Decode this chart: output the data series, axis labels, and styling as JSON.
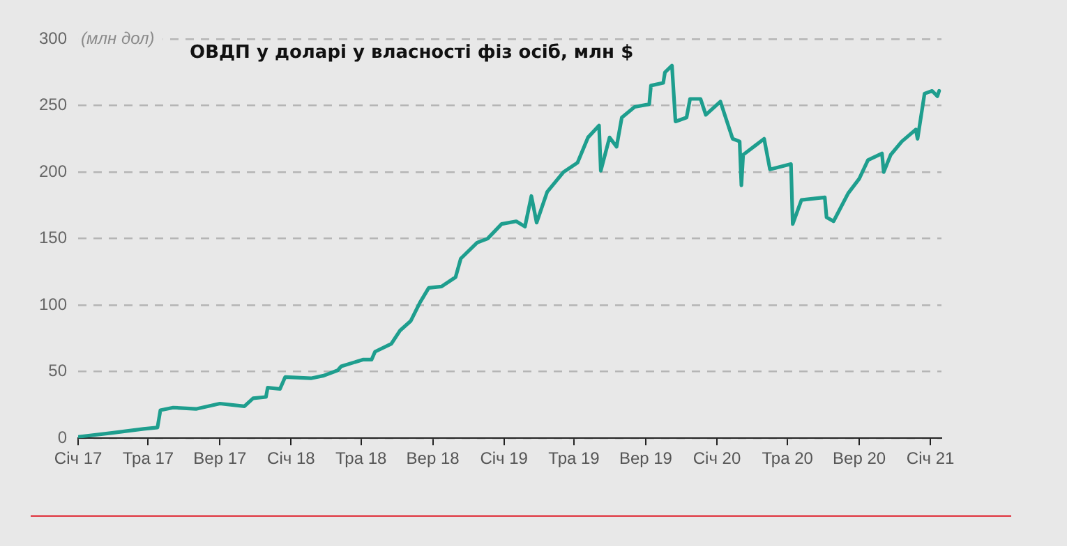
{
  "chart_data": {
    "type": "line",
    "title": "ОВДП у доларі у власності фіз осіб, млн $",
    "ylabel": "(млн дол)",
    "x": [
      "2017-01-01",
      "2017-02-28",
      "2017-04-23",
      "2017-05-17",
      "2017-05-22",
      "2017-06-13",
      "2017-07-22",
      "2017-09-01",
      "2017-10-13",
      "2017-10-28",
      "2017-11-19",
      "2017-11-22",
      "2017-12-13",
      "2017-12-22",
      "2018-02-04",
      "2018-02-26",
      "2018-03-22",
      "2018-03-28",
      "2018-05-04",
      "2018-05-19",
      "2018-05-25",
      "2018-06-22",
      "2018-07-07",
      "2018-07-25",
      "2018-08-10",
      "2018-08-25",
      "2018-09-16",
      "2018-10-10",
      "2018-10-19",
      "2018-11-16",
      "2018-12-04",
      "2018-12-28",
      "2019-01-22",
      "2019-02-06",
      "2019-02-17",
      "2019-02-26",
      "2019-03-16",
      "2019-04-13",
      "2019-05-07",
      "2019-05-25",
      "2019-06-13",
      "2019-06-16",
      "2019-07-01",
      "2019-07-13",
      "2019-07-22",
      "2019-08-13",
      "2019-09-07",
      "2019-09-10",
      "2019-10-01",
      "2019-10-04",
      "2019-10-16",
      "2019-10-22",
      "2019-11-10",
      "2019-11-16",
      "2019-12-04",
      "2019-12-13",
      "2020-01-07",
      "2020-01-16",
      "2020-01-28",
      "2020-02-09",
      "2020-02-12",
      "2020-02-15",
      "2020-03-07",
      "2020-03-22",
      "2020-04-01",
      "2020-05-07",
      "2020-05-10",
      "2020-05-25",
      "2020-07-04",
      "2020-07-07",
      "2020-07-19",
      "2020-08-13",
      "2020-09-01",
      "2020-09-16",
      "2020-10-10",
      "2020-10-13",
      "2020-10-25",
      "2020-11-13",
      "2020-12-07",
      "2020-12-10",
      "2020-12-22",
      "2021-01-04",
      "2021-01-13",
      "2021-01-16"
    ],
    "series": [
      {
        "color": "#1e9e8e",
        "values": [
          1,
          4,
          7,
          8,
          21,
          23,
          22,
          26,
          24,
          30,
          31,
          38,
          37,
          46,
          45,
          47,
          51,
          54,
          59,
          59,
          65,
          71,
          81,
          88,
          102,
          113,
          114,
          121,
          135,
          147,
          150,
          161,
          163,
          159,
          182,
          162,
          185,
          200,
          207,
          226,
          235,
          201,
          226,
          219,
          241,
          249,
          251,
          265,
          267,
          275,
          280,
          238,
          241,
          255,
          255,
          243,
          253,
          241,
          225,
          223,
          190,
          213,
          220,
          225,
          202,
          206,
          161,
          179,
          181,
          166,
          163,
          184,
          195,
          209,
          214,
          200,
          213,
          223,
          232,
          225,
          259,
          261,
          257,
          261
        ]
      }
    ],
    "xlim": [
      "2017-01-01",
      "2021-01-20"
    ],
    "xticks": [
      {
        "value": "2017-01",
        "label": "Січ 17"
      },
      {
        "value": "2017-05",
        "label": "Тра 17"
      },
      {
        "value": "2017-09",
        "label": "Вер 17"
      },
      {
        "value": "2018-01",
        "label": "Січ 18"
      },
      {
        "value": "2018-05",
        "label": "Тра 18"
      },
      {
        "value": "2018-09",
        "label": "Вер 18"
      },
      {
        "value": "2019-01",
        "label": "Січ 19"
      },
      {
        "value": "2019-05",
        "label": "Тра 19"
      },
      {
        "value": "2019-09",
        "label": "Вер 19"
      },
      {
        "value": "2020-01",
        "label": "Січ 20"
      },
      {
        "value": "2020-05",
        "label": "Тра 20"
      },
      {
        "value": "2020-09",
        "label": "Вер 20"
      },
      {
        "value": "2021-01",
        "label": "Січ 21"
      }
    ],
    "ylim": [
      0,
      300
    ],
    "yticks": [
      0,
      50,
      100,
      150,
      200,
      250,
      300
    ],
    "grid": "y",
    "legend": false,
    "marker": "none",
    "line_style": "solid"
  }
}
